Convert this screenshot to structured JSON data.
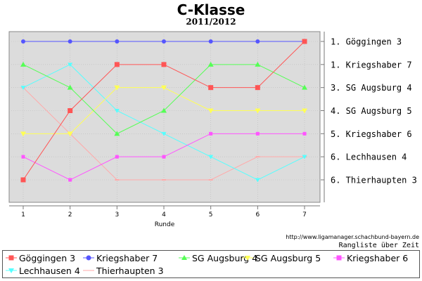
{
  "chart_data": {
    "type": "line",
    "title": "C-Klasse",
    "subtitle": "2011/2012",
    "xlabel": "Runde",
    "x": [
      1,
      2,
      3,
      4,
      5,
      6,
      7
    ],
    "ylim": [
      1,
      7
    ],
    "y_inverted": true,
    "grid": true,
    "background": "#dcdcdc",
    "legend_position": "bottom",
    "source": "http://www.ligamanager.schachbund-bayern.de",
    "caption": "Rangliste über Zeit",
    "right_labels": [
      "1. Göggingen 3",
      "1. Kriegshaber 7",
      "3. SG Augsburg 4",
      "4. SG Augsburg 5",
      "5. Kriegshaber 6",
      "6. Lechhausen 4",
      "6. Thierhaupten 3"
    ],
    "series": [
      {
        "name": "Göggingen 3",
        "color": "#ff5555",
        "marker": "square",
        "values": [
          7,
          4,
          2,
          2,
          3,
          3,
          1
        ]
      },
      {
        "name": "Kriegshaber 7",
        "color": "#5555ff",
        "marker": "circle",
        "values": [
          1,
          1,
          1,
          1,
          1,
          1,
          1
        ]
      },
      {
        "name": "SG Augsburg 4",
        "color": "#55ff55",
        "marker": "triangle-up",
        "values": [
          2,
          3,
          5,
          4,
          2,
          2,
          3
        ]
      },
      {
        "name": "SG Augsburg 5",
        "color": "#ffff55",
        "marker": "triangle-down",
        "values": [
          5,
          5,
          3,
          3,
          4,
          4,
          4
        ]
      },
      {
        "name": "Kriegshaber 6",
        "color": "#ff55ff",
        "marker": "square-small",
        "values": [
          6,
          7,
          6,
          6,
          5,
          5,
          5
        ]
      },
      {
        "name": "Lechhausen 4",
        "color": "#55ffff",
        "marker": "triangle-down-small",
        "values": [
          3,
          2,
          4,
          5,
          6,
          7,
          6
        ]
      },
      {
        "name": "Thierhaupten 3",
        "color": "#ffaaaa",
        "marker": "line",
        "values": [
          3,
          5,
          7,
          7,
          7,
          6,
          6
        ]
      }
    ]
  }
}
